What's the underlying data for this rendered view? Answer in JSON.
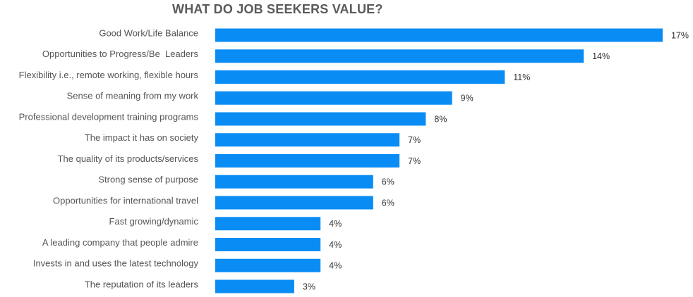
{
  "chart_data": {
    "type": "bar",
    "orientation": "horizontal",
    "title": "WHAT DO JOB SEEKERS VALUE?",
    "categories": [
      "Good Work/Life Balance",
      "Opportunities to Progress/Be  Leaders",
      "Flexibility i.e., remote working, flexible hours",
      "Sense of meaning from my work",
      "Professional development training programs",
      "The impact it has on society",
      "The quality of its products/services",
      "Strong sense of purpose",
      "Opportunities for international travel",
      "Fast growing/dynamic",
      "A leading company that people admire",
      "Invests in and uses the latest technology",
      "The reputation of its leaders"
    ],
    "values": [
      17,
      14,
      11,
      9,
      8,
      7,
      7,
      6,
      6,
      4,
      4,
      4,
      3
    ],
    "value_labels": [
      "17%",
      "14%",
      "11%",
      "9%",
      "8%",
      "7%",
      "7%",
      "6%",
      "6%",
      "4%",
      "4%",
      "4%",
      "3%"
    ],
    "bar_color": "#0a8cf5",
    "xlabel": "",
    "ylabel": "",
    "grid": false,
    "legend": "none"
  }
}
